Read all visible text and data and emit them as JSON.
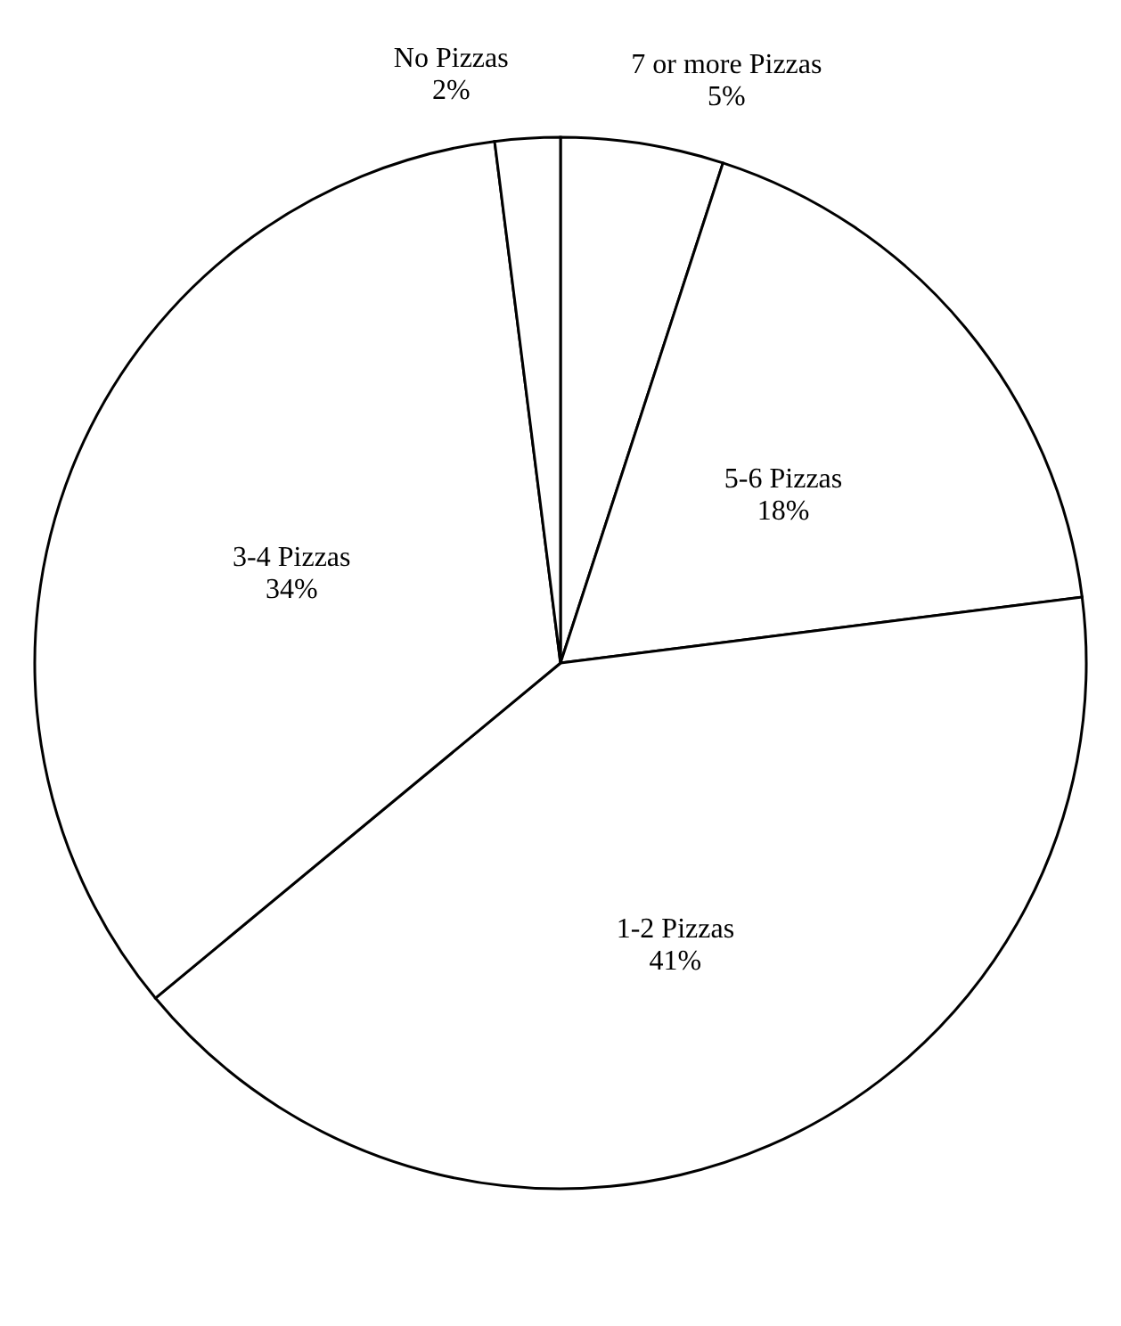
{
  "chart_data": {
    "type": "pie",
    "categories": [
      "7 or more Pizzas",
      "5-6 Pizzas",
      "1-2 Pizzas",
      "3-4 Pizzas",
      "No Pizzas"
    ],
    "values": [
      5,
      18,
      41,
      34,
      2
    ],
    "value_labels": [
      "5%",
      "18%",
      "41%",
      "34%",
      "2%"
    ],
    "colors": [
      "#ffffff",
      "#ffffff",
      "#ffffff",
      "#ffffff",
      "#ffffff"
    ]
  }
}
